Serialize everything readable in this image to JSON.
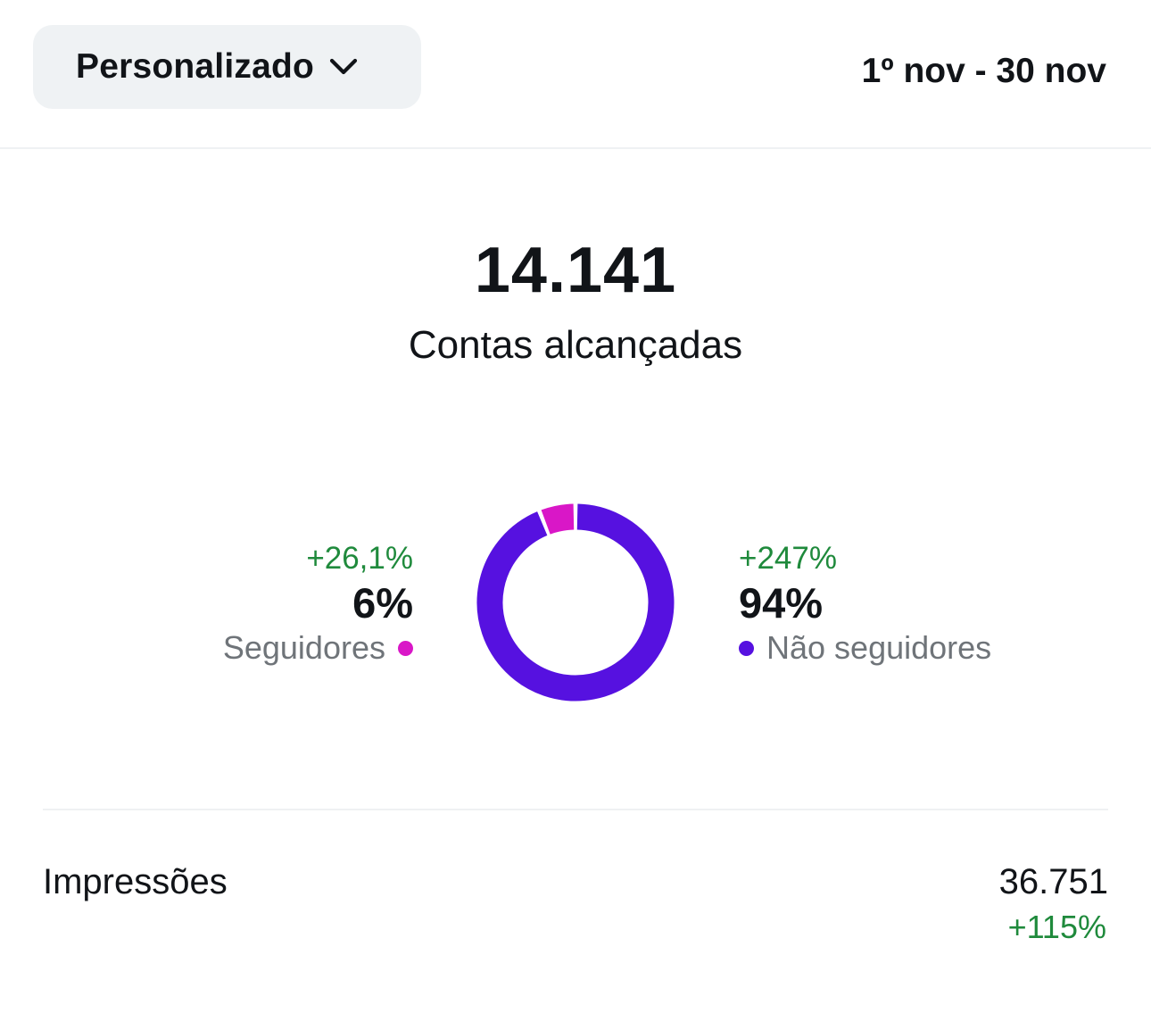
{
  "header": {
    "period_label": "Personalizado",
    "date_range": "1º nov - 30 nov"
  },
  "summary": {
    "total": "14.141",
    "total_label": "Contas alcançadas"
  },
  "breakdown": {
    "followers": {
      "change": "+26,1%",
      "percent": "6%",
      "label": "Seguidores",
      "color": "#d917c7",
      "share": 0.06
    },
    "non_followers": {
      "change": "+247%",
      "percent": "94%",
      "label": "Não seguidores",
      "color": "#5611e0",
      "share": 0.94
    }
  },
  "metrics": {
    "impressions": {
      "label": "Impressões",
      "value": "36.751",
      "change": "+115%"
    }
  },
  "colors": {
    "positive": "#1f8a3c",
    "divider": "#eff1f3",
    "dropdown_bg": "#eff2f4"
  },
  "icons": {
    "dropdown": "chevron-down-icon"
  }
}
